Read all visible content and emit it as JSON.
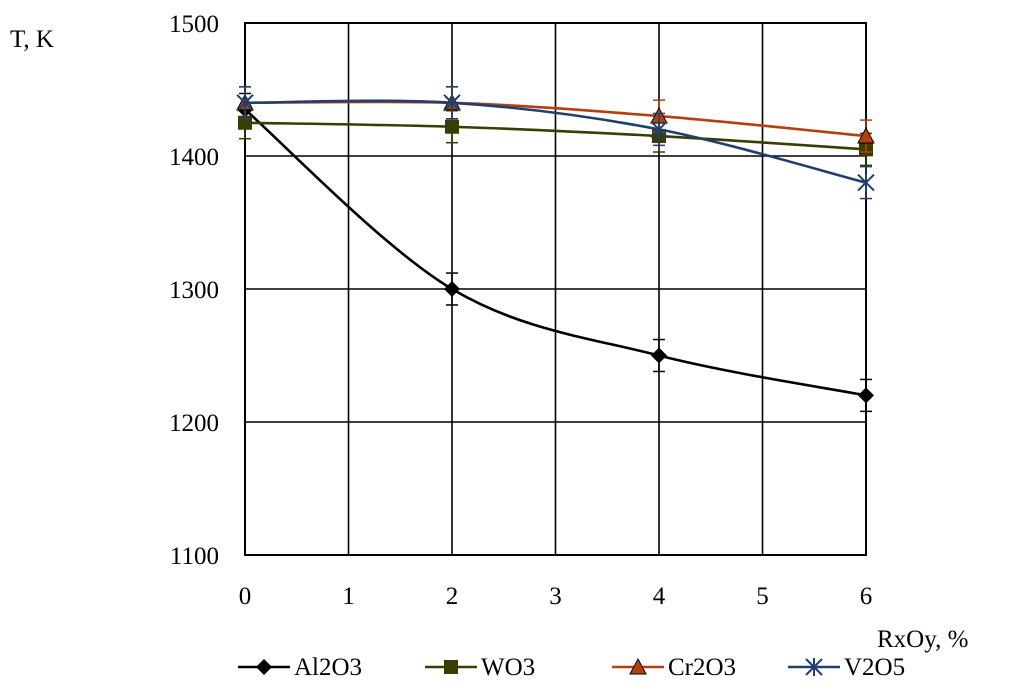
{
  "chart_data": {
    "type": "line",
    "ylabel": "T, K",
    "xlabel": "RxOy, %",
    "xlim": [
      0,
      6
    ],
    "ylim": [
      1100,
      1500
    ],
    "x_ticks": [
      "0",
      "1",
      "2",
      "3",
      "4",
      "5",
      "6"
    ],
    "y_ticks": [
      "1100",
      "1200",
      "1300",
      "1400",
      "1500"
    ],
    "grid": true,
    "legend_position": "bottom",
    "error_bar": 12,
    "series": [
      {
        "name": "Al2O3",
        "color": "#000000",
        "marker": "diamond",
        "x": [
          0,
          2,
          4,
          6
        ],
        "y": [
          1435,
          1300,
          1250,
          1220
        ]
      },
      {
        "name": "WO3",
        "color": "#3a3d00",
        "marker": "square",
        "x": [
          0,
          2,
          4,
          6
        ],
        "y": [
          1425,
          1422,
          1415,
          1405
        ]
      },
      {
        "name": "Cr2O3",
        "color": "#b5400f",
        "marker": "triangle",
        "x": [
          0,
          2,
          4,
          6
        ],
        "y": [
          1440,
          1440,
          1430,
          1415
        ]
      },
      {
        "name": "V2O5",
        "color": "#1f3f6e",
        "marker": "star",
        "x": [
          0,
          2,
          4,
          6
        ],
        "y": [
          1440,
          1440,
          1420,
          1380
        ]
      }
    ]
  }
}
